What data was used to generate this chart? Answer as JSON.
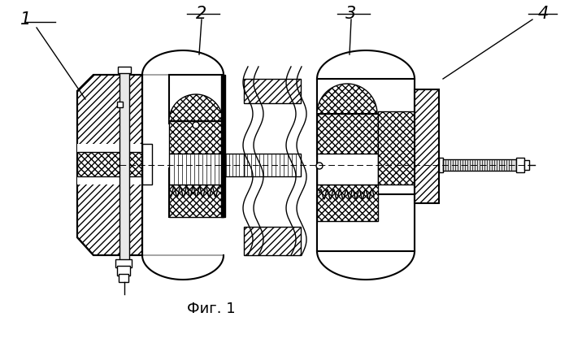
{
  "title": "Фиг. 1",
  "bg_color": "#ffffff",
  "lw": 1.0,
  "lw2": 1.5
}
